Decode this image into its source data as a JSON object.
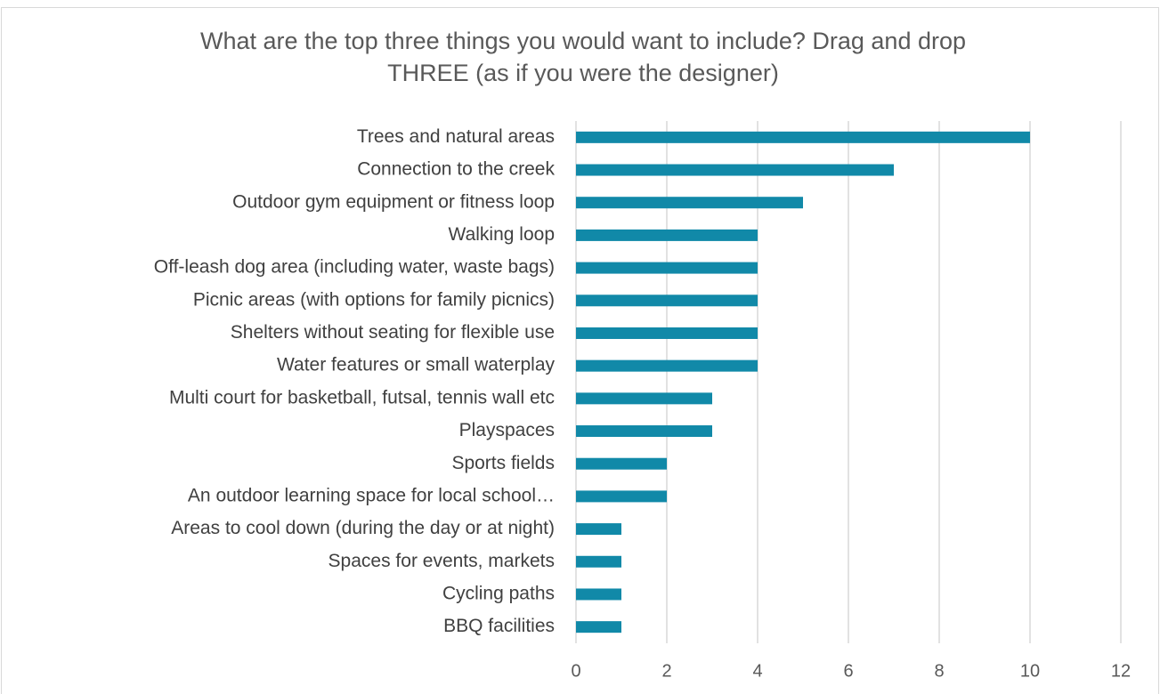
{
  "chart_data": {
    "type": "barh",
    "title": "What are the top three things you would want to include? Drag and drop THREE (as if you were the  designer)",
    "categories": [
      "Trees and natural areas",
      "Connection to the creek",
      "Outdoor gym equipment or fitness loop",
      "Walking loop",
      "Off-leash dog area (including water, waste bags)",
      "Picnic areas (with options for family picnics)",
      "Shelters without seating for flexible use",
      "Water features or small waterplay",
      "Multi court for basketball, futsal, tennis wall etc",
      "Playspaces",
      "Sports fields",
      "An outdoor learning space for local school…",
      "Areas to cool down (during the day or at night)",
      "Spaces for events, markets",
      "Cycling paths",
      "BBQ facilities"
    ],
    "values": [
      10,
      7,
      5,
      4,
      4,
      4,
      4,
      4,
      3,
      3,
      2,
      2,
      1,
      1,
      1,
      1
    ],
    "color": "#1189a8",
    "xlim": [
      0,
      12
    ],
    "xticks": [
      0,
      2,
      4,
      6,
      8,
      10,
      12
    ],
    "grid": true
  }
}
